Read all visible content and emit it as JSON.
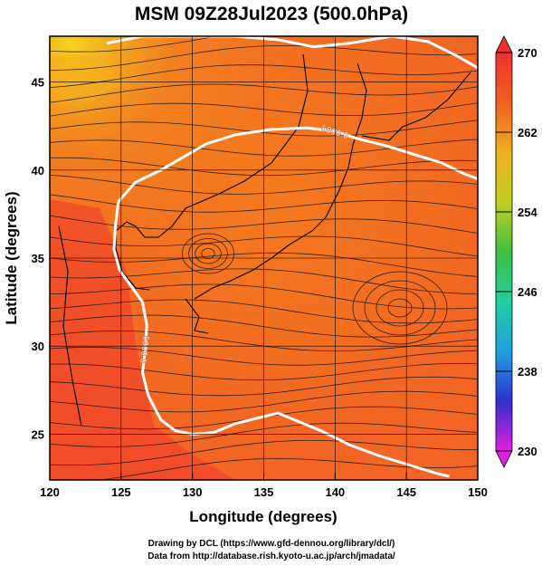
{
  "title": "MSM 09Z28Jul2023 (500.0hPa)",
  "chart_data": {
    "type": "heatmap",
    "title": "MSM 09Z28Jul2023 (500.0hPa)",
    "xlabel": "Longitude (degrees)",
    "ylabel": "Latitude  (degrees)",
    "xlim": [
      120,
      150
    ],
    "ylim": [
      22.4,
      47.6
    ],
    "x_ticks": [
      120,
      125,
      130,
      135,
      140,
      145,
      150
    ],
    "y_ticks": [
      25,
      30,
      35,
      40,
      45
    ],
    "grid": true,
    "colorbar": {
      "ticks": [
        230,
        238,
        246,
        254,
        262,
        270
      ],
      "range": [
        230,
        270
      ],
      "placement": "right",
      "colors": [
        "#e020e0",
        "#3030d0",
        "#20a0e0",
        "#20d0a0",
        "#40c040",
        "#c0d020",
        "#f0b020",
        "#f06020",
        "#f03030"
      ]
    },
    "contours": [
      {
        "label": "5900.0",
        "points": [
          [
            124.0,
            47.2
          ],
          [
            126.5,
            47.6
          ],
          [
            130.0,
            47.6
          ],
          [
            133.0,
            47.6
          ],
          [
            136.0,
            47.4
          ],
          [
            138.5,
            47.0
          ],
          [
            141.0,
            47.2
          ],
          [
            144.0,
            47.6
          ],
          [
            146.5,
            47.3
          ],
          [
            148.5,
            46.5
          ],
          [
            150.0,
            45.8
          ]
        ]
      },
      {
        "label": "5900.0",
        "points": [
          [
            124.8,
            38.2
          ],
          [
            126.0,
            39.3
          ],
          [
            127.8,
            40.0
          ],
          [
            129.5,
            40.8
          ],
          [
            131.0,
            41.5
          ],
          [
            133.0,
            42.0
          ],
          [
            135.5,
            42.3
          ],
          [
            138.0,
            42.4
          ],
          [
            140.0,
            42.2
          ],
          [
            141.5,
            41.8
          ],
          [
            143.5,
            41.4
          ],
          [
            145.5,
            40.9
          ],
          [
            147.5,
            40.4
          ],
          [
            149.0,
            39.8
          ],
          [
            150.0,
            39.5
          ]
        ]
      },
      {
        "label": "5900.0",
        "points": [
          [
            124.8,
            38.2
          ],
          [
            124.6,
            36.8
          ],
          [
            124.5,
            35.5
          ],
          [
            124.9,
            34.3
          ],
          [
            125.8,
            33.3
          ],
          [
            126.5,
            32.5
          ],
          [
            126.8,
            31.2
          ],
          [
            126.7,
            29.8
          ],
          [
            126.5,
            28.5
          ],
          [
            126.9,
            27.2
          ],
          [
            127.8,
            25.8
          ],
          [
            128.8,
            25.2
          ],
          [
            130.0,
            25.0
          ],
          [
            131.5,
            25.1
          ],
          [
            133.0,
            25.6
          ],
          [
            134.5,
            25.9
          ],
          [
            136.0,
            26.2
          ],
          [
            137.5,
            25.7
          ],
          [
            139.0,
            25.2
          ],
          [
            141.0,
            24.4
          ],
          [
            143.0,
            23.8
          ],
          [
            145.0,
            23.3
          ],
          [
            147.0,
            22.8
          ],
          [
            148.0,
            22.6
          ]
        ]
      }
    ]
  },
  "credits": {
    "line1": "Drawing by DCL (https://www.gfd-dennou.org/library/dcl/)",
    "line2": "Data from http://database.rish.kyoto-u.ac.jp/arch/jmadata/"
  }
}
